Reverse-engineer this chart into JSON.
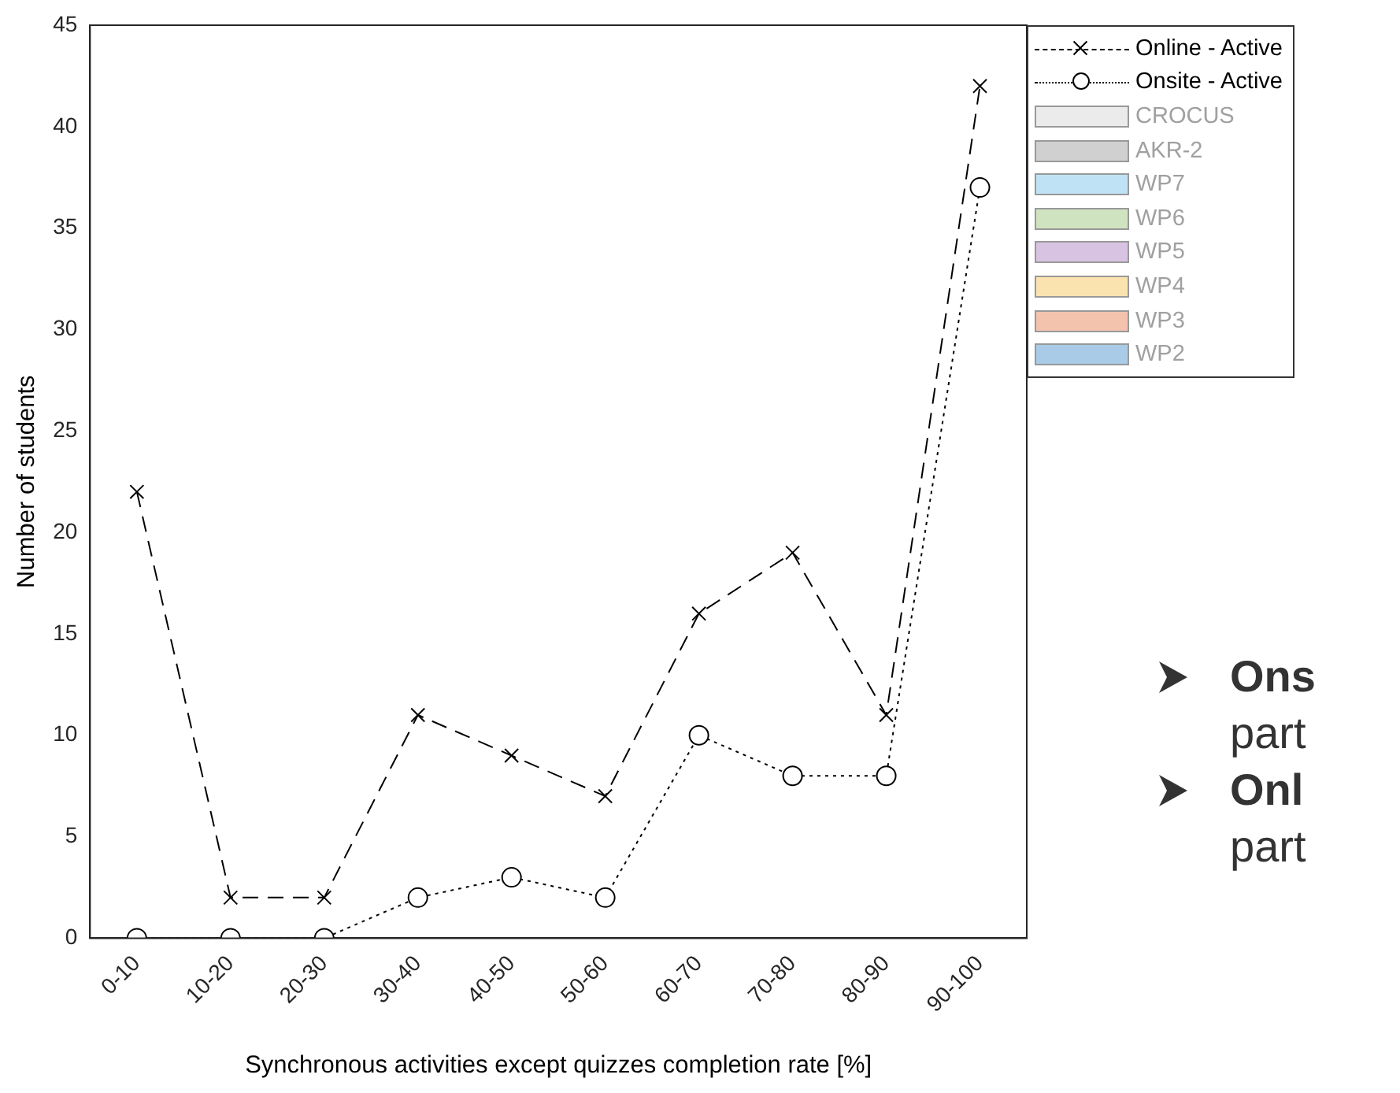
{
  "chart_data": {
    "type": "line",
    "xlabel": "Synchronous activities except quizzes completion rate [%]",
    "ylabel": "Number of students",
    "categories": [
      "0-10",
      "10-20",
      "20-30",
      "30-40",
      "40-50",
      "50-60",
      "60-70",
      "70-80",
      "80-90",
      "90-100"
    ],
    "ylim": [
      0,
      45
    ],
    "yticks": [
      0,
      5,
      10,
      15,
      20,
      25,
      30,
      35,
      40,
      45
    ],
    "grid": false,
    "legend": "top right",
    "series": [
      {
        "name": "Online - Active",
        "color": "#000000",
        "marker": "cross",
        "line_style": "dashed",
        "values": [
          22,
          2,
          2,
          11,
          9,
          7,
          16,
          19,
          11,
          42
        ]
      },
      {
        "name": "Onsite - Active",
        "color": "#000000",
        "marker": "circle",
        "line_style": "dotted",
        "values": [
          0,
          0,
          0,
          2,
          3,
          2,
          10,
          8,
          8,
          37
        ]
      },
      {
        "name": "CROCUS",
        "type": "area",
        "color": "#ebebeb",
        "values": [
          null,
          null,
          null,
          null,
          null,
          null,
          null,
          null,
          null,
          null
        ]
      },
      {
        "name": "AKR-2",
        "type": "area",
        "color": "#d0d0d0",
        "values": [
          null,
          null,
          null,
          null,
          null,
          null,
          null,
          null,
          null,
          null
        ]
      },
      {
        "name": "WP7",
        "type": "area",
        "color": "#bfe3f5",
        "values": [
          null,
          null,
          null,
          null,
          null,
          null,
          null,
          null,
          null,
          null
        ]
      },
      {
        "name": "WP6",
        "type": "area",
        "color": "#cfe3c0",
        "values": [
          null,
          null,
          null,
          null,
          null,
          null,
          null,
          null,
          null,
          null
        ]
      },
      {
        "name": "WP5",
        "type": "area",
        "color": "#d9c3e3",
        "values": [
          null,
          null,
          null,
          null,
          null,
          null,
          null,
          null,
          null,
          null
        ]
      },
      {
        "name": "WP4",
        "type": "area",
        "color": "#fbe3b0",
        "values": [
          null,
          null,
          null,
          null,
          null,
          null,
          null,
          null,
          null,
          null
        ]
      },
      {
        "name": "WP3",
        "type": "area",
        "color": "#f3c3ae",
        "values": [
          null,
          null,
          null,
          null,
          null,
          null,
          null,
          null,
          null,
          null
        ]
      },
      {
        "name": "WP2",
        "type": "area",
        "color": "#a9cbe8",
        "values": [
          null,
          null,
          null,
          null,
          null,
          null,
          null,
          null,
          null,
          null
        ]
      }
    ],
    "annotations": [
      "Ons",
      "part",
      "Onl",
      "part"
    ]
  }
}
